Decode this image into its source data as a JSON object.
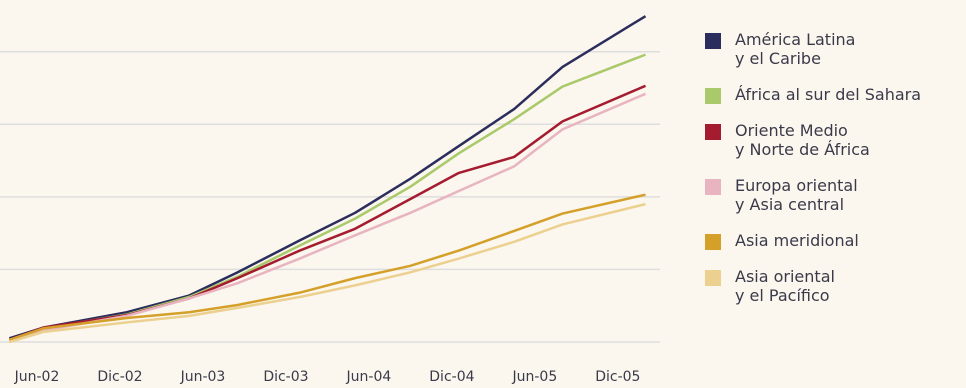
{
  "chart_data": {
    "type": "line",
    "x": [
      -2,
      0.5,
      6.5,
      11,
      14.5,
      19,
      23,
      27,
      30.5,
      34.5,
      38,
      44
    ],
    "xticks": [
      {
        "value": 0,
        "label": "Jun-02"
      },
      {
        "value": 6,
        "label": "Dic-02"
      },
      {
        "value": 12,
        "label": "Jun-03"
      },
      {
        "value": 18,
        "label": "Dic-03"
      },
      {
        "value": 24,
        "label": "Jun-04"
      },
      {
        "value": 30,
        "label": "Dic-04"
      },
      {
        "value": 36,
        "label": "Jun-05"
      },
      {
        "value": 42,
        "label": "Dic-05"
      }
    ],
    "xlim": [
      -2.5,
      46
    ],
    "ylim": [
      0,
      4.7
    ],
    "grid_lines": [
      0,
      1,
      2,
      3,
      4
    ],
    "series": [
      {
        "name": "América Latina\ny el Caribe",
        "color": "#2b2d5c",
        "values": [
          0.05,
          0.2,
          0.41,
          0.64,
          0.96,
          1.4,
          1.78,
          2.25,
          2.7,
          3.21,
          3.79,
          4.49
        ]
      },
      {
        "name": "África al sur del Sahara",
        "color": "#a9c96a",
        "values": [
          0.01,
          0.19,
          0.38,
          0.62,
          0.9,
          1.33,
          1.7,
          2.14,
          2.6,
          3.07,
          3.52,
          3.96
        ]
      },
      {
        "name": "Oriente Medio\ny Norte de África",
        "color": "#a51c30",
        "values": [
          0.03,
          0.2,
          0.37,
          0.6,
          0.88,
          1.26,
          1.56,
          1.97,
          2.33,
          2.55,
          3.04,
          3.53
        ]
      },
      {
        "name": "Europa oriental\ny Asia central",
        "color": "#e8b4c0",
        "values": [
          0.01,
          0.16,
          0.36,
          0.6,
          0.81,
          1.15,
          1.47,
          1.78,
          2.08,
          2.42,
          2.93,
          3.42
        ]
      },
      {
        "name": "Asia meridional",
        "color": "#d4a02a",
        "values": [
          0.03,
          0.19,
          0.33,
          0.41,
          0.51,
          0.68,
          0.88,
          1.05,
          1.26,
          1.53,
          1.77,
          2.03
        ]
      },
      {
        "name": "Asia oriental\ny el Pacífico",
        "color": "#ecd08f",
        "values": [
          0,
          0.14,
          0.27,
          0.36,
          0.47,
          0.62,
          0.78,
          0.96,
          1.15,
          1.38,
          1.62,
          1.9
        ]
      }
    ]
  }
}
